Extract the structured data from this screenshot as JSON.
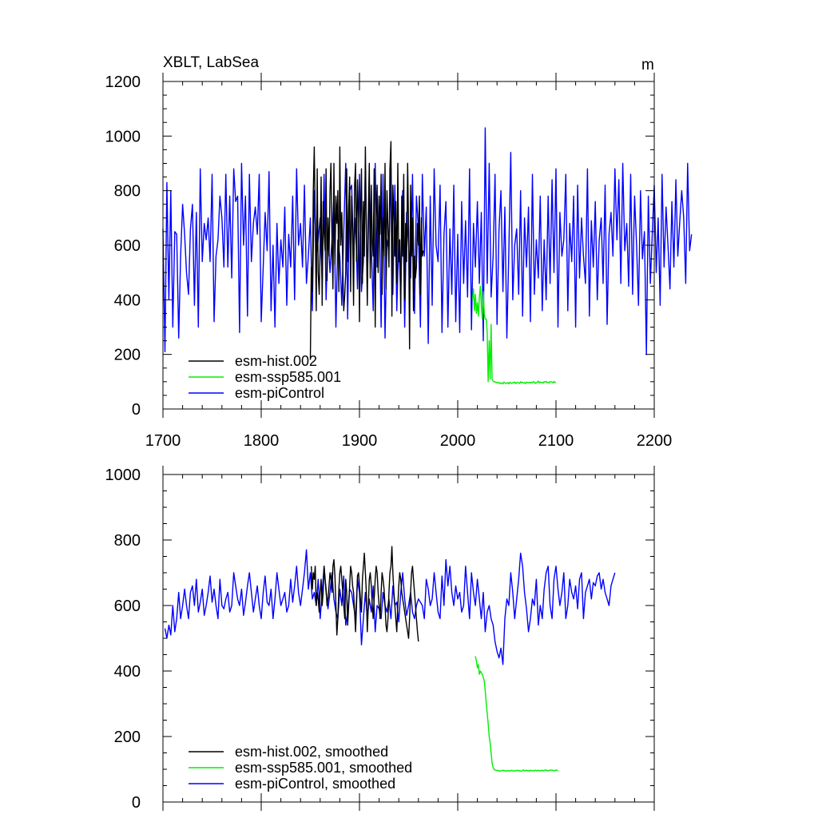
{
  "figure": {
    "title": "XBLT, LabSea",
    "units": "m"
  },
  "chart_data": [
    {
      "type": "line",
      "title": "XBLT, LabSea",
      "units": "m",
      "xlabel": "",
      "ylabel": "",
      "xlim": [
        1700,
        2200
      ],
      "ylim": [
        0,
        1200
      ],
      "xticks": [
        1700,
        1800,
        1900,
        2000,
        2100,
        2200
      ],
      "xtick_labels": [
        "1700",
        "1800",
        "1900",
        "2000",
        "2100",
        "2200"
      ],
      "yticks": [
        0,
        200,
        400,
        600,
        800,
        1000,
        1200
      ],
      "ytick_labels": [
        "0",
        "200",
        "400",
        "600",
        "800",
        "1000",
        "1200"
      ],
      "legend_position": "bottom-left",
      "series": [
        {
          "name": "esm-piControl",
          "color": "#0000ff",
          "x_start": 1700,
          "x_step": 2,
          "values": [
            660,
            210,
            830,
            400,
            800,
            300,
            650,
            640,
            260,
            560,
            750,
            640,
            500,
            420,
            660,
            750,
            380,
            720,
            300,
            880,
            540,
            680,
            620,
            700,
            540,
            860,
            320,
            560,
            620,
            780,
            700,
            520,
            860,
            520,
            780,
            480,
            880,
            760,
            780,
            280,
            900,
            600,
            780,
            340,
            860,
            540,
            680,
            740,
            640,
            860,
            320,
            520,
            720,
            580,
            870,
            360,
            600,
            300,
            680,
            460,
            620,
            520,
            740,
            380,
            640,
            520,
            780,
            400,
            880,
            600,
            680,
            520,
            820,
            460,
            560,
            700,
            360,
            800,
            560,
            620,
            700,
            460,
            860,
            400,
            640,
            500,
            620,
            780,
            300,
            620,
            560,
            380,
            650,
            900,
            330,
            800,
            820,
            560,
            700,
            440,
            860,
            430,
            540,
            880,
            460,
            820,
            600,
            360,
            900,
            520,
            780,
            300,
            860,
            260,
            620,
            580,
            880,
            420,
            820,
            360,
            620,
            420,
            800,
            300,
            720,
            600,
            480,
            860,
            350,
            780,
            660,
            300,
            860,
            560,
            740,
            240,
            780,
            380,
            880,
            600,
            540,
            820,
            280,
            640,
            760,
            300,
            660,
            420,
            820,
            320,
            640,
            280,
            760,
            460,
            690,
            410,
            880,
            290,
            680,
            520,
            760,
            460,
            720,
            250,
            1030,
            460,
            900,
            410,
            560,
            860,
            310,
            660,
            800,
            430,
            740,
            260,
            580,
            940,
            400,
            600,
            660,
            420,
            800,
            340,
            700,
            520,
            740,
            320,
            860,
            420,
            620,
            480,
            780,
            360,
            620,
            400,
            780,
            460,
            840,
            500,
            880,
            300,
            720,
            560,
            620,
            860,
            360,
            680,
            540,
            780,
            300,
            820,
            480,
            700,
            560,
            460,
            880,
            340,
            690,
            520,
            760,
            400,
            620,
            700,
            460,
            820,
            310,
            640,
            720,
            560,
            880,
            620,
            840,
            460,
            900,
            580,
            680,
            450,
            860,
            420,
            780,
            600,
            380,
            800,
            550,
            650,
            200,
            780,
            460,
            640,
            820,
            500,
            700,
            380,
            860,
            520,
            740,
            600,
            440,
            760,
            520,
            840,
            560,
            690,
            800,
            700,
            460,
            900,
            580,
            640
          ]
        },
        {
          "name": "esm-hist.002",
          "color": "#000000",
          "x_start": 1850,
          "x_step": 1,
          "values": [
            180,
            520,
            430,
            800,
            960,
            700,
            360,
            880,
            500,
            420,
            600,
            850,
            380,
            760,
            650,
            580,
            880,
            470,
            700,
            560,
            800,
            900,
            620,
            440,
            900,
            530,
            780,
            680,
            800,
            430,
            960,
            600,
            720,
            520,
            360,
            420,
            500,
            880,
            540,
            740,
            850,
            430,
            780,
            660,
            380,
            820,
            900,
            540,
            840,
            700,
            320,
            680,
            880,
            460,
            760,
            560,
            960,
            650,
            380,
            720,
            900,
            480,
            820,
            620,
            560,
            880,
            300,
            700,
            820,
            500,
            780,
            640,
            860,
            420,
            700,
            560,
            900,
            440,
            800,
            660,
            520,
            880,
            980,
            340,
            820,
            700,
            560,
            760,
            460,
            900,
            540,
            620,
            350,
            780,
            560,
            860,
            400,
            680,
            540,
            900,
            660,
            220,
            820,
            560,
            700,
            360,
            560,
            480,
            520,
            680,
            600,
            780,
            420,
            700,
            560,
            580
          ]
        },
        {
          "name": "esm-ssp585.001",
          "color": "#00ee00",
          "x_start": 2015,
          "x_step": 1,
          "values": [
            400,
            440,
            360,
            420,
            350,
            390,
            340,
            410,
            450,
            380,
            330,
            430,
            350,
            330,
            330,
            280,
            100,
            250,
            110,
            310,
            110,
            102,
            100,
            100,
            96,
            98,
            95,
            97,
            93,
            96,
            94,
            92,
            99,
            96,
            93,
            95,
            97,
            92,
            98,
            95,
            94,
            97,
            96,
            99,
            93,
            97,
            98,
            95,
            94,
            100,
            96,
            98,
            95,
            97,
            93,
            99,
            97,
            96,
            98,
            95,
            98,
            96,
            100,
            99,
            94,
            97,
            98,
            102,
            96,
            99,
            97,
            98,
            95,
            100,
            99,
            101,
            97,
            98,
            95,
            100,
            100,
            98,
            96,
            101,
            97,
            98
          ]
        }
      ],
      "legend": [
        {
          "label": "esm-hist.002",
          "color": "#000000"
        },
        {
          "label": "esm-ssp585.001",
          "color": "#00ee00"
        },
        {
          "label": "esm-piControl",
          "color": "#0000ff"
        }
      ]
    },
    {
      "type": "line",
      "title": "",
      "xlabel": "",
      "ylabel": "",
      "xlim": [
        1700,
        2200
      ],
      "ylim": [
        0,
        1000
      ],
      "xticks": [
        1700,
        1800,
        1900,
        2000,
        2100,
        2200
      ],
      "yticks": [
        0,
        200,
        400,
        600,
        800,
        1000
      ],
      "ytick_labels": [
        "0",
        "200",
        "400",
        "600",
        "800",
        "1000"
      ],
      "legend_position": "bottom-left",
      "series": [
        {
          "name": "esm-piControl, smoothed",
          "color": "#0000ff",
          "x_start": 1702,
          "x_step": 2,
          "values": [
            530,
            500,
            540,
            510,
            600,
            520,
            560,
            640,
            560,
            600,
            650,
            600,
            560,
            640,
            660,
            600,
            680,
            580,
            610,
            650,
            570,
            600,
            640,
            690,
            610,
            650,
            600,
            560,
            680,
            600,
            590,
            620,
            640,
            580,
            600,
            700,
            660,
            620,
            600,
            650,
            570,
            610,
            660,
            700,
            640,
            580,
            620,
            660,
            600,
            560,
            640,
            690,
            610,
            600,
            650,
            560,
            620,
            700,
            650,
            600,
            620,
            640,
            580,
            600,
            680,
            610,
            660,
            720,
            640,
            600,
            650,
            700,
            770,
            650,
            700,
            620,
            640,
            600,
            680,
            560,
            640,
            720,
            640,
            590,
            640,
            700,
            620,
            580,
            560,
            650,
            600,
            690,
            540,
            580,
            650,
            640,
            600,
            560,
            680,
            640,
            480,
            560,
            640,
            560,
            620,
            580,
            660,
            520,
            600,
            590,
            560,
            640,
            600,
            580,
            620,
            560,
            660,
            600,
            610,
            550,
            640,
            700,
            620,
            570,
            600,
            640,
            580,
            560,
            600,
            620,
            610,
            600,
            560,
            680,
            650,
            600,
            620,
            700,
            640,
            580,
            560,
            690,
            600,
            740,
            660,
            720,
            640,
            600,
            660,
            620,
            640,
            580,
            600,
            720,
            640,
            560,
            700,
            640,
            600,
            680,
            620,
            560,
            640,
            520,
            580,
            600,
            560,
            540,
            490,
            460,
            440,
            470,
            420,
            560,
            620,
            600,
            700,
            640,
            560,
            620,
            680,
            760,
            720,
            640,
            590,
            520,
            560,
            620,
            600,
            680,
            540,
            600,
            560,
            650,
            700,
            720,
            600,
            560,
            680,
            720,
            650,
            600,
            640,
            700,
            560,
            600,
            680,
            640,
            620,
            660,
            590,
            680,
            700,
            560,
            640,
            660,
            680,
            620,
            670,
            660,
            690,
            700,
            650,
            680,
            640,
            620,
            600,
            660,
            680,
            700
          ]
        },
        {
          "name": "esm-hist.002, smoothed",
          "color": "#000000",
          "x_start": 1851,
          "x_step": 1,
          "values": [
            720,
            650,
            700,
            680,
            720,
            600,
            640,
            620,
            580,
            640,
            680,
            600,
            640,
            720,
            680,
            650,
            600,
            620,
            660,
            700,
            680,
            640,
            720,
            740,
            690,
            600,
            510,
            560,
            650,
            700,
            720,
            680,
            640,
            600,
            560,
            680,
            640,
            540,
            600,
            660,
            720,
            700,
            660,
            640,
            580,
            520,
            600,
            690,
            700,
            660,
            620,
            580,
            680,
            720,
            760,
            700,
            640,
            520,
            600,
            680,
            700,
            660,
            600,
            560,
            620,
            680,
            720,
            700,
            640,
            600,
            560,
            640,
            700,
            680,
            650,
            600,
            540,
            520,
            560,
            640,
            700,
            720,
            780,
            700,
            640,
            600,
            560,
            520,
            600,
            660,
            700,
            680,
            640,
            620,
            600,
            580,
            560,
            540,
            520,
            500,
            560,
            640,
            700,
            720,
            680,
            640,
            600,
            560,
            520,
            490
          ]
        },
        {
          "name": "esm-ssp585.001, smoothed",
          "color": "#00ee00",
          "x_start": 2018,
          "x_step": 1,
          "values": [
            445,
            430,
            410,
            420,
            390,
            400,
            395,
            390,
            380,
            370,
            340,
            300,
            270,
            240,
            200,
            180,
            150,
            120,
            105,
            100,
            98,
            96,
            97,
            95,
            96,
            94,
            95,
            96,
            97,
            95,
            96,
            94,
            95,
            96,
            94,
            96,
            95,
            97,
            95,
            94,
            96,
            95,
            96,
            97,
            95,
            96,
            94,
            95,
            96,
            98,
            95,
            96,
            97,
            95,
            96,
            94,
            97,
            96,
            95,
            96,
            95,
            97,
            96,
            95,
            97,
            96,
            95,
            96,
            97,
            95,
            96,
            98,
            96,
            97,
            95,
            96,
            97,
            98,
            96,
            97,
            95,
            96,
            98,
            96,
            97
          ]
        }
      ],
      "legend": [
        {
          "label": "esm-hist.002, smoothed",
          "color": "#000000"
        },
        {
          "label": "esm-ssp585.001, smoothed",
          "color": "#00ee00"
        },
        {
          "label": "esm-piControl, smoothed",
          "color": "#0000ff"
        }
      ]
    }
  ]
}
